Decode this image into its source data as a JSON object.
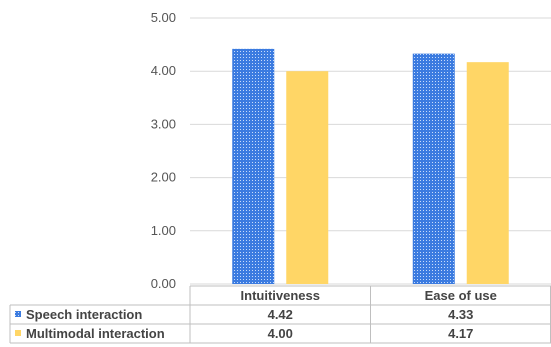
{
  "chart_data": {
    "type": "bar",
    "categories": [
      "Intuitiveness",
      "Ease of use"
    ],
    "series": [
      {
        "name": "Speech interaction",
        "values": [
          4.42,
          4.33
        ],
        "value_labels": [
          "4.42",
          "4.33"
        ],
        "color": "#3b7be0",
        "pattern": "dotted"
      },
      {
        "name": "Multimodal interaction",
        "values": [
          4.0,
          4.17
        ],
        "value_labels": [
          "4.00",
          "4.17"
        ],
        "color": "#ffd666",
        "pattern": "solid"
      }
    ],
    "ylim": [
      0,
      5
    ],
    "yticks": [
      "0.00",
      "1.00",
      "2.00",
      "3.00",
      "4.00",
      "5.00"
    ],
    "grid": true,
    "legend": "data-table-left",
    "title": "",
    "xlabel": "",
    "ylabel": ""
  },
  "colors": {
    "grid": "#d9d9d9",
    "border": "#bfbfbf",
    "text": "#444444"
  }
}
